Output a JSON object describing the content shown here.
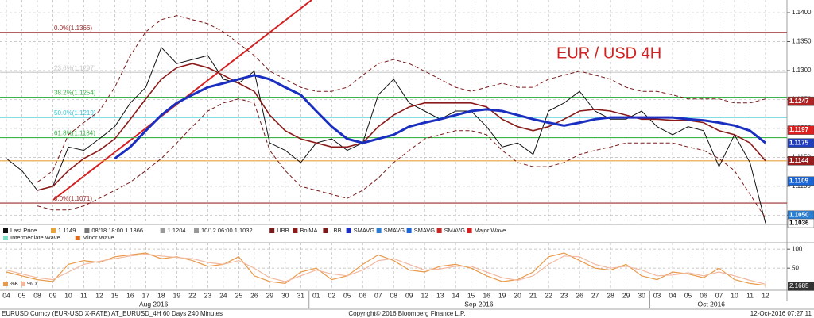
{
  "chart_data": [
    {
      "type": "line",
      "annotation": "EUR / USD 4H",
      "categories": [
        "04",
        "05",
        "08",
        "09",
        "10",
        "11",
        "12",
        "15",
        "16",
        "17",
        "18",
        "19",
        "22",
        "23",
        "24",
        "25",
        "26",
        "29",
        "30",
        "31",
        "01",
        "02",
        "05",
        "06",
        "07",
        "08",
        "09",
        "12",
        "13",
        "14",
        "15",
        "16",
        "19",
        "20",
        "21",
        "22",
        "23",
        "26",
        "27",
        "28",
        "29",
        "30",
        "03",
        "04",
        "05",
        "06",
        "07",
        "10",
        "11",
        "12"
      ],
      "months": [
        "Aug 2016",
        "Sep 2016",
        "Oct 2016"
      ],
      "series": [
        {
          "name": "Last Price",
          "color": "#111111",
          "width": 1,
          "dashed": false,
          "values": [
            1.1148,
            1.1127,
            1.1093,
            1.11,
            1.1168,
            1.1162,
            1.1182,
            1.1203,
            1.1244,
            1.1271,
            1.134,
            1.1312,
            1.1319,
            1.1326,
            1.1285,
            1.1278,
            1.1299,
            1.1175,
            1.1162,
            1.1141,
            1.1175,
            1.1182,
            1.1162,
            1.1175,
            1.1258,
            1.1285,
            1.1244,
            1.123,
            1.1216,
            1.123,
            1.123,
            1.1203,
            1.1168,
            1.1175,
            1.1155,
            1.123,
            1.1244,
            1.1264,
            1.123,
            1.1216,
            1.1216,
            1.123,
            1.1203,
            1.1189,
            1.1203,
            1.1196,
            1.1134,
            1.1189,
            1.1141,
            1.1036
          ]
        },
        {
          "name": "UBB",
          "color": "#7a1a1a",
          "width": 1,
          "dashed": true,
          "values": [
            null,
            null,
            1.1107,
            1.1127,
            1.1189,
            1.121,
            1.123,
            1.1271,
            1.1326,
            1.1367,
            1.1388,
            1.1395,
            1.1388,
            1.1381,
            1.1367,
            1.1347,
            1.1326,
            1.1299,
            1.1285,
            1.1271,
            1.1264,
            1.1264,
            1.1271,
            1.1292,
            1.1312,
            1.1319,
            1.1312,
            1.1299,
            1.1285,
            1.1271,
            1.1264,
            1.1271,
            1.1278,
            1.1271,
            1.1271,
            1.1285,
            1.1292,
            1.1299,
            1.1292,
            1.1285,
            1.1271,
            1.1264,
            1.1264,
            1.1258,
            1.1251,
            1.1251,
            1.1251,
            1.1244,
            1.1244,
            1.1251
          ]
        },
        {
          "name": "BolMA",
          "color": "#8b1a1a",
          "width": 1.6,
          "dashed": false,
          "values": [
            null,
            null,
            1.1093,
            1.11,
            1.1127,
            1.1148,
            1.1162,
            1.1182,
            1.1216,
            1.1251,
            1.1285,
            1.1305,
            1.1312,
            1.1305,
            1.1292,
            1.1278,
            1.1264,
            1.1223,
            1.1196,
            1.1182,
            1.1175,
            1.1168,
            1.1168,
            1.1175,
            1.1203,
            1.1223,
            1.1237,
            1.1244,
            1.1244,
            1.1244,
            1.1244,
            1.1237,
            1.1216,
            1.1203,
            1.1196,
            1.1203,
            1.1216,
            1.123,
            1.1233,
            1.123,
            1.1223,
            1.1216,
            1.1216,
            1.1214,
            1.1214,
            1.121,
            1.1196,
            1.1189,
            1.1175,
            1.1144
          ]
        },
        {
          "name": "LBB",
          "color": "#7a1a1a",
          "width": 1,
          "dashed": true,
          "values": [
            null,
            null,
            1.1066,
            1.1059,
            1.1059,
            1.1066,
            1.1079,
            1.1093,
            1.1107,
            1.1127,
            1.1148,
            1.1175,
            1.1203,
            1.123,
            1.1244,
            1.1251,
            1.1244,
            1.1162,
            1.1127,
            1.11,
            1.1093,
            1.1086,
            1.1079,
            1.1093,
            1.1114,
            1.1141,
            1.1162,
            1.1182,
            1.1189,
            1.1196,
            1.1196,
            1.1189,
            1.1162,
            1.1141,
            1.1134,
            1.1134,
            1.1141,
            1.1155,
            1.1162,
            1.1168,
            1.1175,
            1.1175,
            1.1175,
            1.1175,
            1.1168,
            1.1162,
            1.1148,
            1.1127,
            1.1086,
            1.1045
          ]
        },
        {
          "name": "SMAVG",
          "color": "#1a2fbf",
          "width": 3,
          "dashed": false,
          "values": [
            null,
            null,
            null,
            null,
            null,
            null,
            null,
            1.1148,
            1.1168,
            1.1196,
            1.1223,
            1.1244,
            1.1258,
            1.1271,
            1.1278,
            1.1285,
            1.1292,
            1.1285,
            1.1271,
            1.1258,
            1.123,
            1.1203,
            1.1182,
            1.1175,
            1.1182,
            1.1189,
            1.1203,
            1.121,
            1.1216,
            1.1223,
            1.123,
            1.1233,
            1.123,
            1.1223,
            1.1216,
            1.121,
            1.1205,
            1.121,
            1.1216,
            1.1219,
            1.1219,
            1.1219,
            1.1219,
            1.1219,
            1.1216,
            1.1214,
            1.121,
            1.1205,
            1.1196,
            1.1175
          ]
        }
      ],
      "legend_stats": [
        {
          "label": "1.1149",
          "color": "#e8a33d"
        },
        {
          "label": "08/18 18:00 1.1366",
          "color": "#777777"
        },
        {
          "label": "1.1204",
          "color": "#999999"
        },
        {
          "label": "10/12 06:00 1.1032",
          "color": "#999999"
        }
      ],
      "legend_extra": [
        {
          "label": "SMAVG",
          "color": "#2a7fd4"
        },
        {
          "label": "SMAVG",
          "color": "#1a66d9"
        },
        {
          "label": "SMAVG",
          "color": "#c62828"
        },
        {
          "label": "Major Wave",
          "color": "#d32020"
        },
        {
          "label": "Intermediate Wave",
          "color": "#7fe0c8"
        },
        {
          "label": "Minor Wave",
          "color": "#e06a1a"
        }
      ],
      "levels": [
        {
          "label": "0.0%(1.1366)",
          "value": 1.1366,
          "color": "#9b2d2d"
        },
        {
          "label": "23.6%(1.1297)",
          "value": 1.1297,
          "color": "#c8c8c8"
        },
        {
          "label": "38.2%(1.1254)",
          "value": 1.1254,
          "color": "#3cb44b"
        },
        {
          "label": "50.0%(1.1219)",
          "value": 1.1219,
          "color": "#39c6d6"
        },
        {
          "label": "61.8%(1.1184)",
          "value": 1.1184,
          "color": "#3cb44b"
        },
        {
          "value": 1.1144,
          "color": "#e8a33d"
        },
        {
          "label": "0.0%(1.1071)",
          "value": 1.1071,
          "color": "#9b2d2d"
        }
      ],
      "price_labels": [
        {
          "value": 1.1247,
          "color": "#b22222"
        },
        {
          "value": 1.1197,
          "color": "#e02020"
        },
        {
          "value": 1.1175,
          "color": "#1f3fbf"
        },
        {
          "value": 1.1144,
          "color": "#9b1c1c"
        },
        {
          "value": 1.1109,
          "color": "#1a66d9"
        },
        {
          "value": {
            "value": 1.105,
            "label": "1.1050"
          },
          "color": "#2a7fd4"
        },
        {
          "value": 1.1036,
          "color": "#ffffff"
        }
      ],
      "ylim": [
        1.1034,
        1.1422
      ],
      "yticks": [
        {
          "value": 1.14,
          "label": "1.1400"
        },
        {
          "value": 1.135,
          "label": "1.1350"
        },
        {
          "value": 1.13,
          "label": "1.1300"
        },
        {
          "value": 1.125,
          "label": "1.1250"
        },
        {
          "value": 1.12,
          "label": "1.1200"
        },
        {
          "value": 1.115,
          "label": "1.1150"
        },
        {
          "value": 1.11,
          "label": "1.1100"
        },
        {
          "value": 1.105,
          "label": "1.1050"
        }
      ],
      "grid": true
    },
    {
      "type": "line",
      "series": [
        {
          "name": "%K",
          "color": "#e89a4a",
          "width": 1.2,
          "dashed": false,
          "values": [
            40,
            30,
            20,
            15,
            60,
            70,
            65,
            80,
            85,
            90,
            75,
            80,
            70,
            55,
            60,
            80,
            30,
            15,
            10,
            40,
            50,
            20,
            30,
            60,
            85,
            70,
            45,
            40,
            55,
            60,
            50,
            30,
            15,
            20,
            40,
            80,
            90,
            70,
            50,
            45,
            60,
            30,
            20,
            40,
            35,
            25,
            50,
            20,
            10,
            5
          ]
        },
        {
          "name": "%D",
          "color": "#f2b9a0",
          "width": 1.2,
          "dashed": false,
          "values": [
            45,
            35,
            25,
            20,
            40,
            60,
            68,
            75,
            82,
            87,
            82,
            78,
            75,
            65,
            60,
            70,
            50,
            25,
            15,
            30,
            45,
            35,
            30,
            45,
            70,
            75,
            60,
            45,
            48,
            55,
            55,
            40,
            25,
            18,
            30,
            60,
            82,
            80,
            60,
            50,
            55,
            45,
            30,
            32,
            38,
            30,
            40,
            30,
            18,
            8
          ]
        }
      ],
      "last_value": 2.1685,
      "ylim": [
        -8,
        117
      ],
      "yticks": [
        100,
        50
      ],
      "grid": true
    }
  ],
  "footer": {
    "left": "EURUSD Curncy (EUR-USD X-RATE) AT_EURUSD_4H 60 Days 240 Minutes",
    "center": "Copyright© 2016 Bloomberg Finance L.P.",
    "right": "12-Oct-2016 07:27:11"
  }
}
